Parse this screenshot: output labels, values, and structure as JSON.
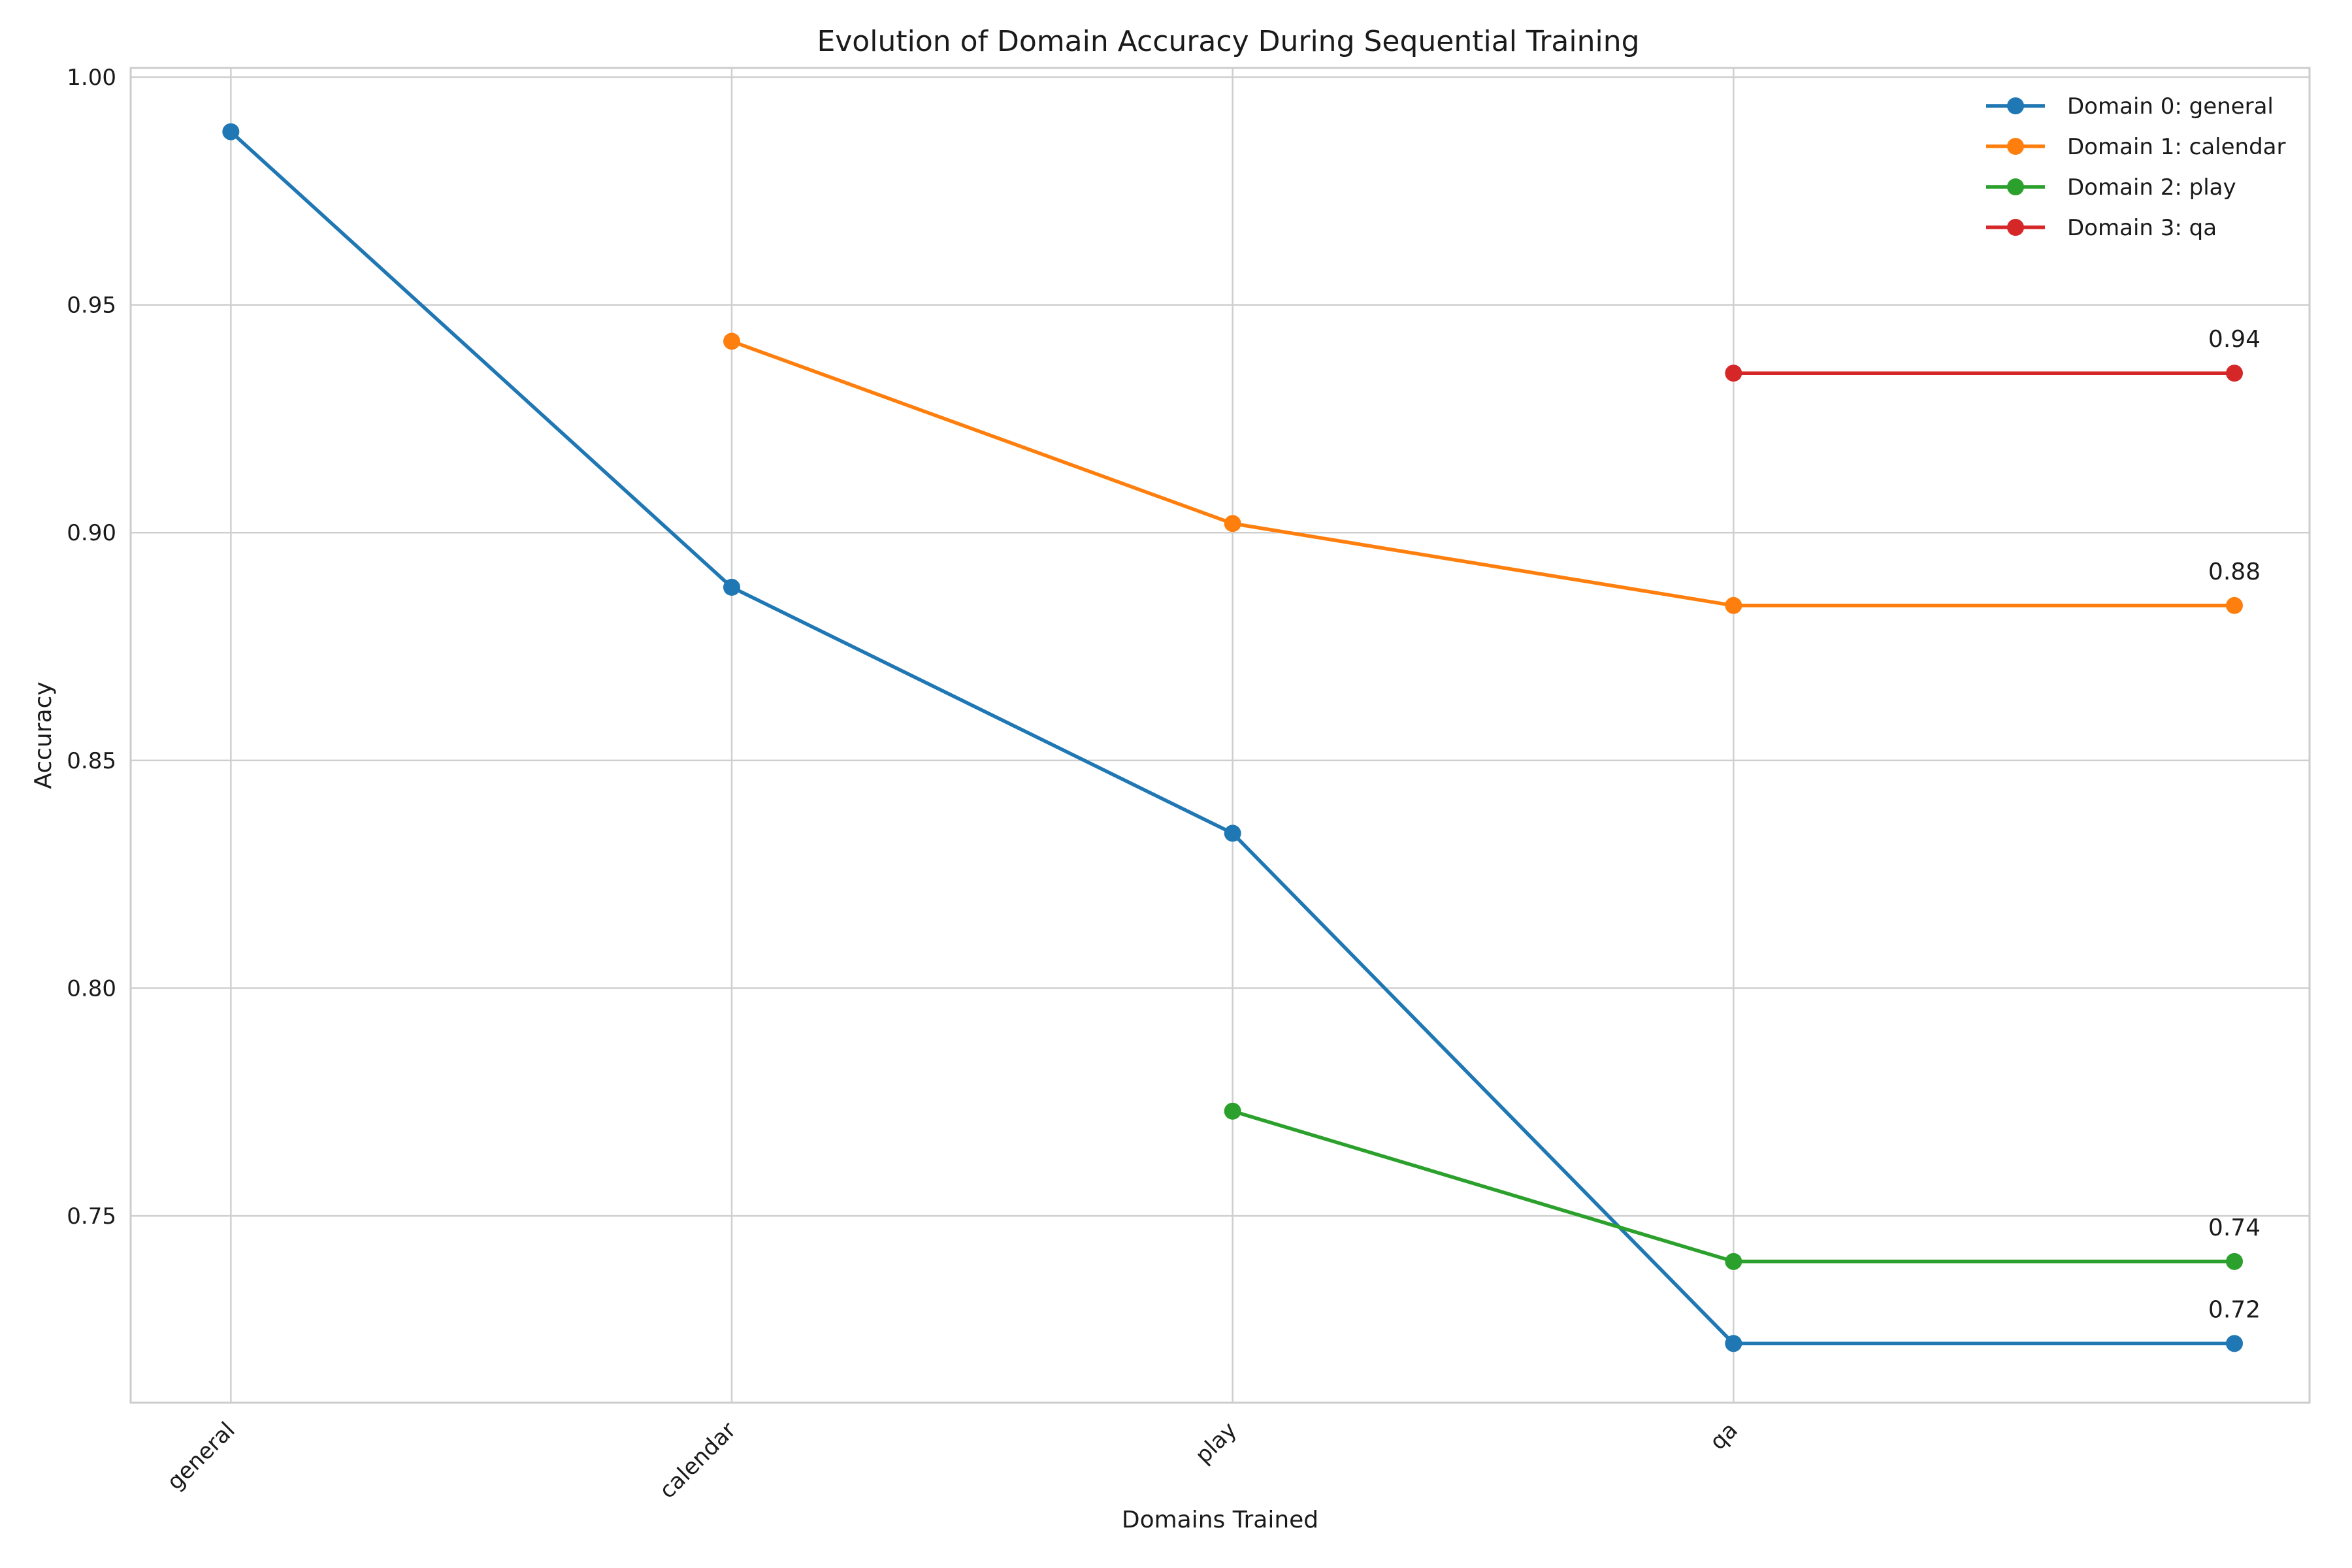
{
  "chart_data": {
    "type": "line",
    "title": "Evolution of Domain Accuracy During Sequential Training",
    "xlabel": "Domains Trained",
    "ylabel": "Accuracy",
    "x_tick_labels": [
      "general",
      "calendar",
      "play",
      "qa"
    ],
    "y_tick_labels": [
      "0.75",
      "0.80",
      "0.85",
      "0.90",
      "0.95",
      "1.00"
    ],
    "y_ticks": [
      0.75,
      0.8,
      0.85,
      0.9,
      0.95,
      1.0
    ],
    "ylim": [
      0.709,
      1.002
    ],
    "xlim": [
      -0.2,
      4.15
    ],
    "grid": true,
    "legend_position": "top-right",
    "series": [
      {
        "name": "Domain 0: general",
        "color": "#1f77b4",
        "x": [
          0,
          1,
          2,
          3,
          4
        ],
        "y": [
          0.988,
          0.888,
          0.834,
          0.722,
          0.722
        ]
      },
      {
        "name": "Domain 1: calendar",
        "color": "#ff7f0e",
        "x": [
          1,
          2,
          3,
          4
        ],
        "y": [
          0.942,
          0.902,
          0.884,
          0.884
        ]
      },
      {
        "name": "Domain 2: play",
        "color": "#2ca02c",
        "x": [
          2,
          3,
          4
        ],
        "y": [
          0.773,
          0.74,
          0.74
        ]
      },
      {
        "name": "Domain 3: qa",
        "color": "#d62728",
        "x": [
          3,
          4
        ],
        "y": [
          0.935,
          0.935
        ]
      }
    ],
    "annotations": [
      {
        "text": "0.94",
        "x": 4,
        "y": 0.935
      },
      {
        "text": "0.88",
        "x": 4,
        "y": 0.884
      },
      {
        "text": "0.74",
        "x": 4,
        "y": 0.74
      },
      {
        "text": "0.72",
        "x": 4,
        "y": 0.722
      }
    ]
  }
}
